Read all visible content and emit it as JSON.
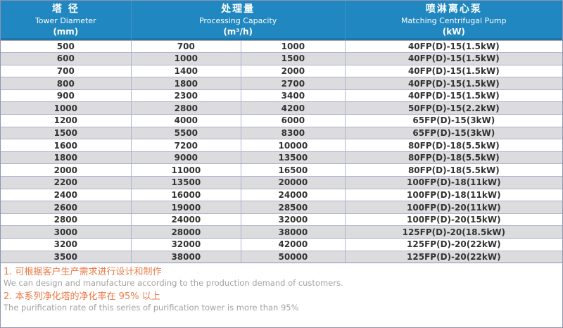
{
  "table": {
    "headers": [
      {
        "zh": "塔 径",
        "en": "Tower Diameter",
        "unit": "(mm)"
      },
      {
        "zh": "处理量",
        "en": "Processing Capacity",
        "unit": "(m³/h)"
      },
      {
        "zh": "喷淋离心泵",
        "en": "Matching Centrifugal Pump",
        "unit": "(kW)"
      }
    ],
    "rows": [
      [
        "500",
        "700",
        "1000",
        "40FP(D)-15(1.5kW)"
      ],
      [
        "600",
        "1000",
        "1500",
        "40FP(D)-15(1.5kW)"
      ],
      [
        "700",
        "1400",
        "2000",
        "40FP(D)-15(1.5kW)"
      ],
      [
        "800",
        "1800",
        "2700",
        "40FP(D)-15(1.5kW)"
      ],
      [
        "900",
        "2300",
        "3400",
        "40FP(D)-15(1.5kW)"
      ],
      [
        "1000",
        "2800",
        "4200",
        "50FP(D)-15(2.2kW)"
      ],
      [
        "1200",
        "4000",
        "6000",
        "65FP(D)-15(3kW)"
      ],
      [
        "1500",
        "5500",
        "8300",
        "65FP(D)-15(3kW)"
      ],
      [
        "1600",
        "7200",
        "10000",
        "80FP(D)-18(5.5kW)"
      ],
      [
        "1800",
        "9000",
        "13500",
        "80FP(D)-18(5.5kW)"
      ],
      [
        "2000",
        "11000",
        "16500",
        "80FP(D)-18(5.5kW)"
      ],
      [
        "2200",
        "13500",
        "20000",
        "100FP(D)-18(11kW)"
      ],
      [
        "2400",
        "16000",
        "24000",
        "100FP(D)-18(11kW)"
      ],
      [
        "2600",
        "19000",
        "28500",
        "100FP(D)-20(11kW)"
      ],
      [
        "2800",
        "24000",
        "32000",
        "100FP(D)-20(15kW)"
      ],
      [
        "3000",
        "28000",
        "38000",
        "125FP(D)-20(18.5kW)"
      ],
      [
        "3200",
        "32000",
        "42000",
        "125FP(D)-20(22kW)"
      ],
      [
        "3500",
        "38000",
        "50000",
        "125FP(D)-20(22kW)"
      ]
    ]
  },
  "notes": [
    {
      "zh": "1. 可根据客户生产需求进行设计和制作",
      "en": "We can design and manufacture according to the production demand of customers."
    },
    {
      "zh": "2. 本系列净化塔的净化率在 95% 以上",
      "en": "The purification rate of this series of purification tower is more than 95%"
    }
  ],
  "colors": {
    "header_blue": "#2187C0",
    "stripe_gray": "#DCDCDE",
    "grid_line": "#AFB3CE",
    "outer_border": "#8C93B4",
    "note_orange": "#ED7A49",
    "note_gray": "#A2A2A2",
    "body_text": "#333333"
  }
}
